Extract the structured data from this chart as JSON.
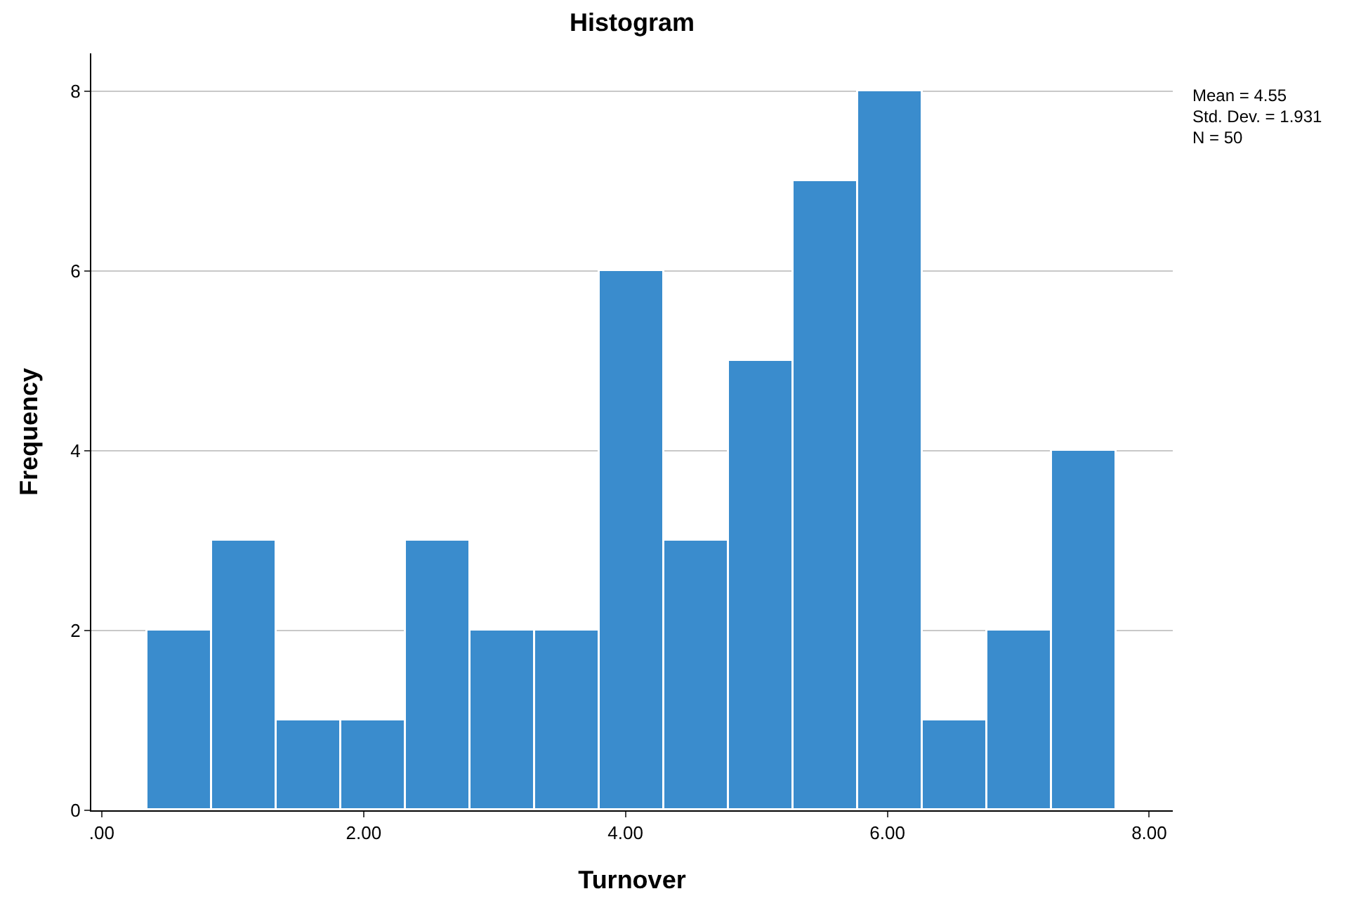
{
  "chart_data": {
    "type": "histogram",
    "title": "Histogram",
    "xlabel": "Turnover",
    "ylabel": "Frequency",
    "bins": [
      0.35,
      0.84,
      1.34,
      1.83,
      2.32,
      2.82,
      3.31,
      3.8,
      4.3,
      4.79,
      5.28,
      5.78,
      6.27,
      6.76,
      7.26,
      7.75
    ],
    "values": [
      2,
      3,
      1,
      1,
      3,
      2,
      2,
      6,
      3,
      5,
      7,
      8,
      1,
      2,
      4
    ],
    "color": "#3a8ccd",
    "xlim": [
      -0.08,
      8.18
    ],
    "xticks": [
      {
        "value": 0,
        "label": ".00"
      },
      {
        "value": 2,
        "label": "2.00"
      },
      {
        "value": 4,
        "label": "4.00"
      },
      {
        "value": 6,
        "label": "6.00"
      },
      {
        "value": 8,
        "label": "8.00"
      }
    ],
    "ylim": [
      0,
      8.42
    ],
    "yticks": [
      0,
      2,
      4,
      6,
      8
    ],
    "grid": "y",
    "annotations": [
      "Mean = 4.55",
      "Std. Dev. = 1.931",
      "N = 50"
    ]
  }
}
